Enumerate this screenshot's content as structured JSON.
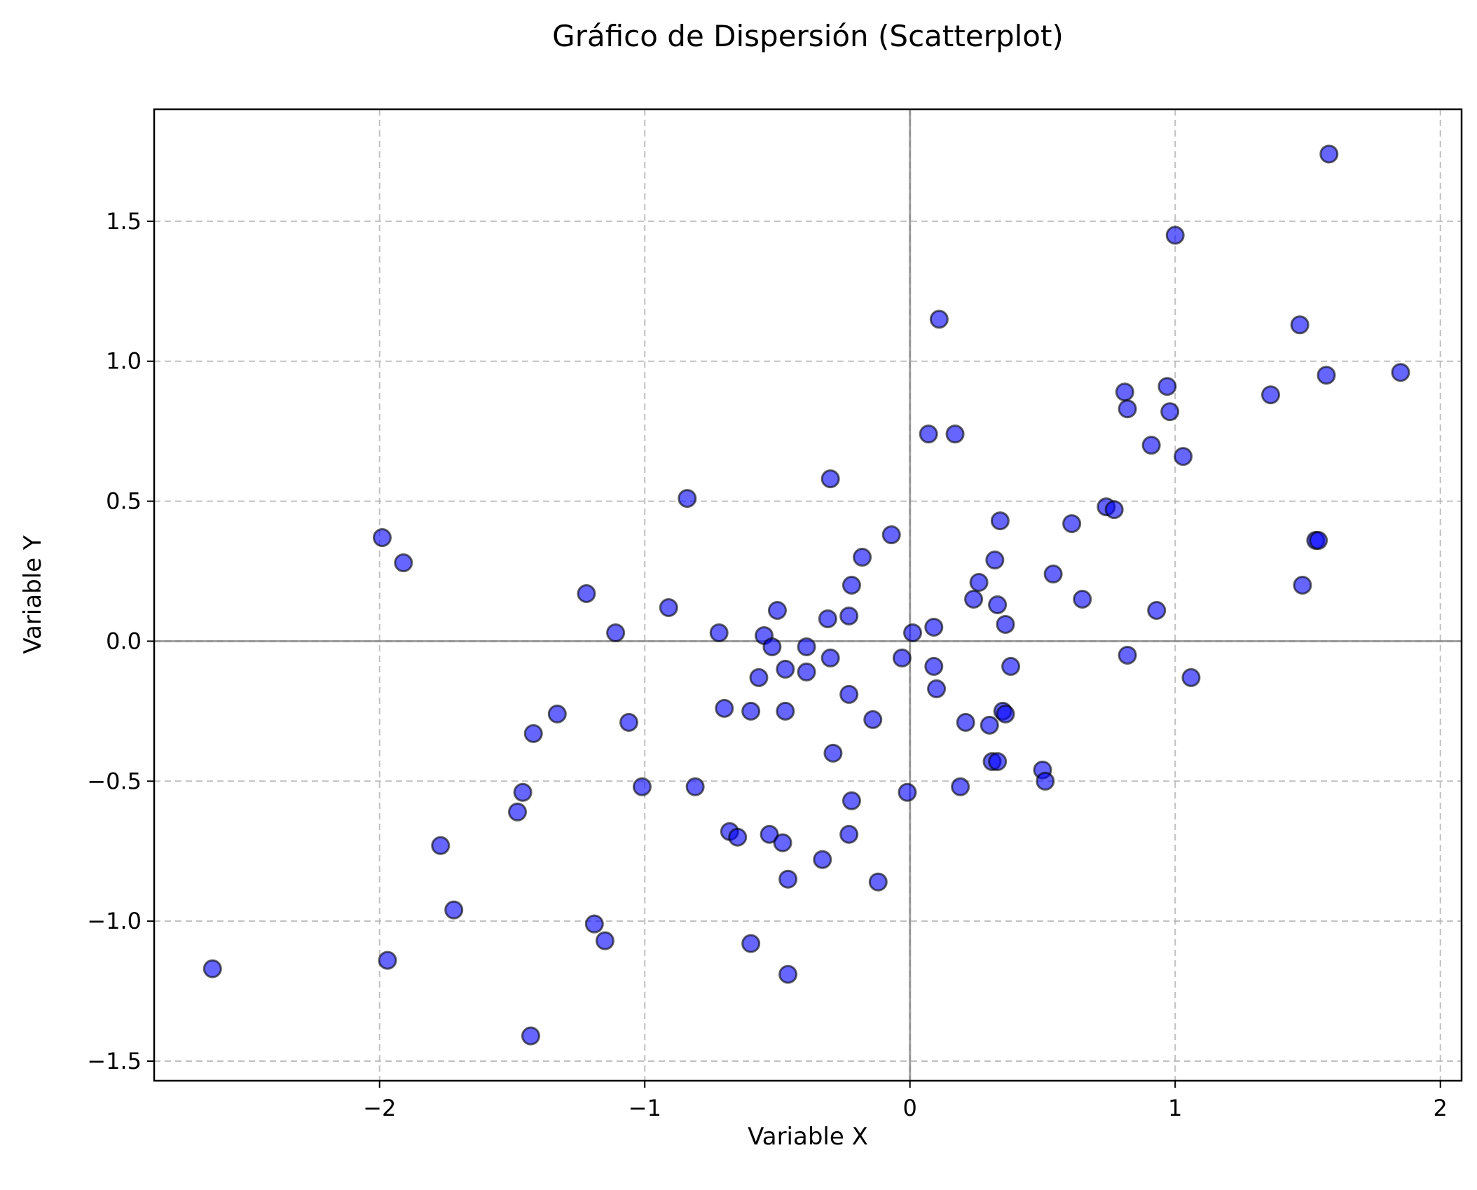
{
  "chart_data": {
    "type": "scatter",
    "title": "Gráfico de Dispersión (Scatterplot)",
    "xlabel": "Variable X",
    "ylabel": "Variable Y",
    "xlim": [
      -2.85,
      2.08
    ],
    "ylim": [
      -1.57,
      1.9
    ],
    "xticks": [
      -2,
      -1,
      0,
      1,
      2
    ],
    "xtick_labels": [
      "−2",
      "−1",
      "0",
      "1",
      "2"
    ],
    "yticks": [
      -1.5,
      -1.0,
      -0.5,
      0.0,
      0.5,
      1.0,
      1.5
    ],
    "ytick_labels": [
      "−1.5",
      "−1.0",
      "−0.5",
      "0.0",
      "0.5",
      "1.0",
      "1.5"
    ],
    "grid": true,
    "grid_style": "dashed",
    "reference_lines": {
      "x": 0,
      "y": 0
    },
    "colors": {
      "marker_fill": "#0000ff",
      "marker_edge": "#000000",
      "marker_alpha": 0.6,
      "grid": "#b0b0b0",
      "reference": "#808080"
    },
    "points": [
      {
        "x": -2.63,
        "y": -1.17
      },
      {
        "x": -1.99,
        "y": 0.37
      },
      {
        "x": -1.97,
        "y": -1.14
      },
      {
        "x": -1.91,
        "y": 0.28
      },
      {
        "x": -1.77,
        "y": -0.73
      },
      {
        "x": -1.72,
        "y": -0.96
      },
      {
        "x": -1.48,
        "y": -0.61
      },
      {
        "x": -1.46,
        "y": -0.54
      },
      {
        "x": -1.42,
        "y": -0.33
      },
      {
        "x": -1.43,
        "y": -1.41
      },
      {
        "x": -1.33,
        "y": -0.26
      },
      {
        "x": -1.22,
        "y": 0.17
      },
      {
        "x": -1.19,
        "y": -1.01
      },
      {
        "x": -1.15,
        "y": -1.07
      },
      {
        "x": -1.11,
        "y": 0.03
      },
      {
        "x": -1.06,
        "y": -0.29
      },
      {
        "x": -1.01,
        "y": -0.52
      },
      {
        "x": -0.91,
        "y": 0.12
      },
      {
        "x": -0.84,
        "y": 0.51
      },
      {
        "x": -0.81,
        "y": -0.52
      },
      {
        "x": -0.72,
        "y": 0.03
      },
      {
        "x": -0.7,
        "y": -0.24
      },
      {
        "x": -0.68,
        "y": -0.68
      },
      {
        "x": -0.65,
        "y": -0.7
      },
      {
        "x": -0.6,
        "y": -0.25
      },
      {
        "x": -0.6,
        "y": -1.08
      },
      {
        "x": -0.57,
        "y": -0.13
      },
      {
        "x": -0.55,
        "y": 0.02
      },
      {
        "x": -0.53,
        "y": -0.69
      },
      {
        "x": -0.52,
        "y": -0.02
      },
      {
        "x": -0.5,
        "y": 0.11
      },
      {
        "x": -0.48,
        "y": -0.72
      },
      {
        "x": -0.47,
        "y": -0.1
      },
      {
        "x": -0.47,
        "y": -0.25
      },
      {
        "x": -0.46,
        "y": -0.85
      },
      {
        "x": -0.46,
        "y": -1.19
      },
      {
        "x": -0.39,
        "y": -0.02
      },
      {
        "x": -0.39,
        "y": -0.11
      },
      {
        "x": -0.33,
        "y": -0.78
      },
      {
        "x": -0.31,
        "y": 0.08
      },
      {
        "x": -0.3,
        "y": 0.58
      },
      {
        "x": -0.3,
        "y": -0.06
      },
      {
        "x": -0.29,
        "y": -0.4
      },
      {
        "x": -0.23,
        "y": 0.09
      },
      {
        "x": -0.23,
        "y": -0.19
      },
      {
        "x": -0.23,
        "y": -0.69
      },
      {
        "x": -0.22,
        "y": 0.2
      },
      {
        "x": -0.22,
        "y": -0.57
      },
      {
        "x": -0.18,
        "y": 0.3
      },
      {
        "x": -0.14,
        "y": -0.28
      },
      {
        "x": -0.12,
        "y": -0.86
      },
      {
        "x": -0.07,
        "y": 0.38
      },
      {
        "x": -0.03,
        "y": -0.06
      },
      {
        "x": -0.01,
        "y": -0.54
      },
      {
        "x": 0.01,
        "y": 0.03
      },
      {
        "x": 0.07,
        "y": 0.74
      },
      {
        "x": 0.09,
        "y": 0.05
      },
      {
        "x": 0.09,
        "y": -0.09
      },
      {
        "x": 0.1,
        "y": -0.17
      },
      {
        "x": 0.11,
        "y": 1.15
      },
      {
        "x": 0.17,
        "y": 0.74
      },
      {
        "x": 0.19,
        "y": -0.52
      },
      {
        "x": 0.21,
        "y": -0.29
      },
      {
        "x": 0.24,
        "y": 0.15
      },
      {
        "x": 0.26,
        "y": 0.21
      },
      {
        "x": 0.3,
        "y": -0.3
      },
      {
        "x": 0.31,
        "y": -0.43
      },
      {
        "x": 0.32,
        "y": 0.29
      },
      {
        "x": 0.33,
        "y": -0.43
      },
      {
        "x": 0.33,
        "y": 0.13
      },
      {
        "x": 0.34,
        "y": 0.43
      },
      {
        "x": 0.35,
        "y": -0.25
      },
      {
        "x": 0.36,
        "y": -0.26
      },
      {
        "x": 0.36,
        "y": 0.06
      },
      {
        "x": 0.38,
        "y": -0.09
      },
      {
        "x": 0.5,
        "y": -0.46
      },
      {
        "x": 0.51,
        "y": -0.5
      },
      {
        "x": 0.54,
        "y": 0.24
      },
      {
        "x": 0.61,
        "y": 0.42
      },
      {
        "x": 0.65,
        "y": 0.15
      },
      {
        "x": 0.74,
        "y": 0.48
      },
      {
        "x": 0.77,
        "y": 0.47
      },
      {
        "x": 0.81,
        "y": 0.89
      },
      {
        "x": 0.82,
        "y": 0.83
      },
      {
        "x": 0.82,
        "y": -0.05
      },
      {
        "x": 0.91,
        "y": 0.7
      },
      {
        "x": 0.93,
        "y": 0.11
      },
      {
        "x": 0.97,
        "y": 0.91
      },
      {
        "x": 0.98,
        "y": 0.82
      },
      {
        "x": 1.0,
        "y": 1.45
      },
      {
        "x": 1.03,
        "y": 0.66
      },
      {
        "x": 1.06,
        "y": -0.13
      },
      {
        "x": 1.36,
        "y": 0.88
      },
      {
        "x": 1.47,
        "y": 1.13
      },
      {
        "x": 1.48,
        "y": 0.2
      },
      {
        "x": 1.53,
        "y": 0.36
      },
      {
        "x": 1.54,
        "y": 0.36
      },
      {
        "x": 1.57,
        "y": 0.95
      },
      {
        "x": 1.58,
        "y": 1.74
      },
      {
        "x": 1.85,
        "y": 0.96
      }
    ]
  }
}
